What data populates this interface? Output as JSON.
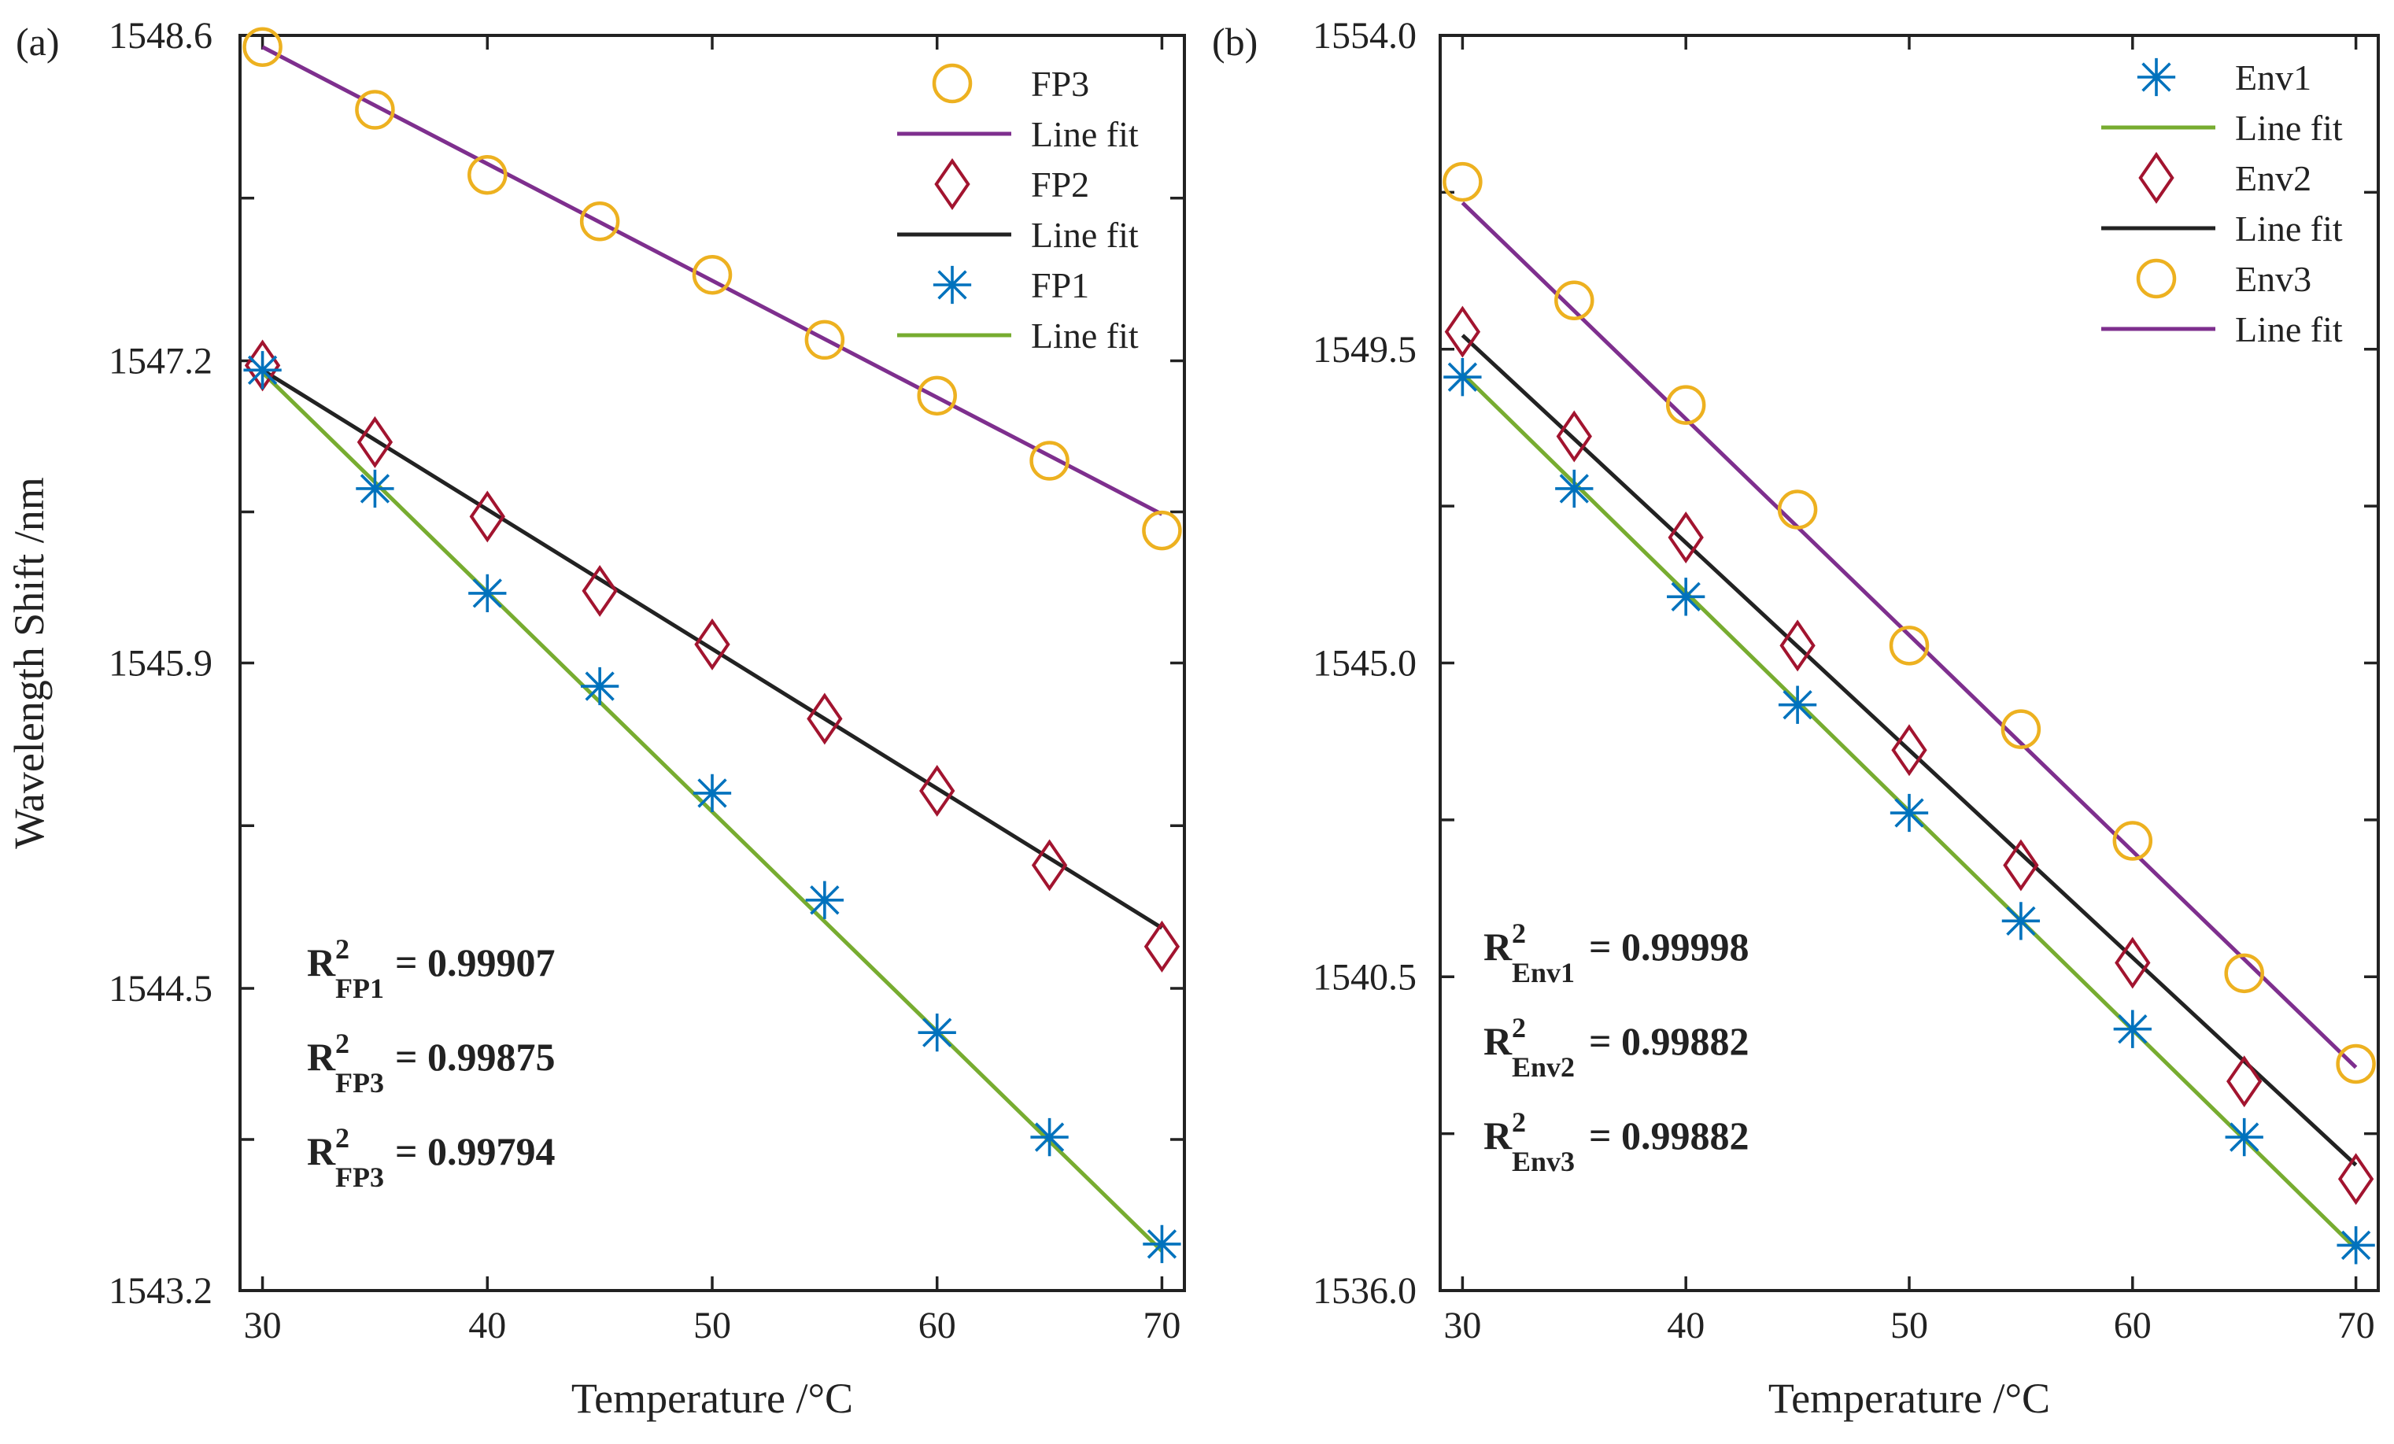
{
  "colors": {
    "orange": "#edb120",
    "purple": "#7e2f8e",
    "darkred": "#a2142f",
    "black": "#222222",
    "green": "#77ac30",
    "blue": "#0072bd",
    "axis": "#222222"
  },
  "chart_data": [
    {
      "panel_label": "(a)",
      "type": "scatter",
      "xlabel": "Temperature /°C",
      "ylabel": "Wavelength Shift /nm",
      "xlim": [
        29,
        71
      ],
      "ylim": [
        1543.2,
        1548.6
      ],
      "xticks": [
        30,
        40,
        50,
        60,
        70
      ],
      "yticks": [
        1543.2,
        1544.5,
        1545.9,
        1547.2,
        1548.6
      ],
      "ytick_labels": [
        "1543.2",
        "1544.5",
        "1545.9",
        "1547.2",
        "1548.6"
      ],
      "x": [
        30,
        35,
        40,
        45,
        50,
        55,
        60,
        65,
        70
      ],
      "series": [
        {
          "name": "FP3",
          "marker": "circle",
          "color": "#edb120",
          "values": [
            1548.55,
            1548.28,
            1548.0,
            1547.8,
            1547.57,
            1547.29,
            1547.05,
            1546.77,
            1546.47
          ],
          "fit": {
            "label": "Line fit",
            "color": "#7e2f8e",
            "start": 1548.55,
            "end": 1546.54
          }
        },
        {
          "name": "FP2",
          "marker": "diamond",
          "color": "#a2142f",
          "values": [
            1547.18,
            1546.85,
            1546.53,
            1546.21,
            1545.98,
            1545.66,
            1545.35,
            1545.03,
            1544.68
          ],
          "fit": {
            "label": "Line fit",
            "color": "#222222",
            "start": 1547.16,
            "end": 1544.76
          }
        },
        {
          "name": "FP1",
          "marker": "asterisk",
          "color": "#0072bd",
          "values": [
            1547.16,
            1546.65,
            1546.2,
            1545.8,
            1545.34,
            1544.88,
            1544.31,
            1543.86,
            1543.4
          ],
          "fit": {
            "label": "Line fit",
            "color": "#77ac30",
            "start": 1547.15,
            "end": 1543.37
          }
        }
      ],
      "legend_order": [
        {
          "label": "FP3",
          "kind": "marker",
          "series": 0
        },
        {
          "label": "Line fit",
          "kind": "line",
          "series": 0
        },
        {
          "label": "FP2",
          "kind": "marker",
          "series": 1
        },
        {
          "label": "Line fit",
          "kind": "line",
          "series": 1
        },
        {
          "label": "FP1",
          "kind": "marker",
          "series": 2
        },
        {
          "label": "Line fit",
          "kind": "line",
          "series": 2
        }
      ],
      "legend_position": "top-right",
      "annotations": [
        {
          "base": "R",
          "sup": "2",
          "sub": "FP1",
          "value": " = 0.99907"
        },
        {
          "base": "R",
          "sup": "2",
          "sub": "FP3",
          "value": " = 0.99875"
        },
        {
          "base": "R",
          "sup": "2",
          "sub": "FP3",
          "value": " = 0.99794"
        }
      ]
    },
    {
      "panel_label": "(b)",
      "type": "scatter",
      "xlabel": "Temperature /°C",
      "ylabel": "",
      "xlim": [
        29,
        71
      ],
      "ylim": [
        1536.0,
        1554.0
      ],
      "xticks": [
        30,
        40,
        50,
        60,
        70
      ],
      "yticks": [
        1536.0,
        1540.5,
        1545.0,
        1549.5,
        1554.0
      ],
      "ytick_labels": [
        "1536.0",
        "1540.5",
        "1545.0",
        "1549.5",
        "1554.0"
      ],
      "x": [
        30,
        35,
        40,
        45,
        50,
        55,
        60,
        65,
        70
      ],
      "series": [
        {
          "name": "Env1",
          "marker": "asterisk",
          "color": "#0072bd",
          "values": [
            1549.1,
            1547.5,
            1545.95,
            1544.4,
            1542.85,
            1541.3,
            1539.75,
            1538.2,
            1536.65
          ],
          "fit": {
            "label": "Line fit",
            "color": "#77ac30",
            "start": 1549.15,
            "end": 1536.6
          }
        },
        {
          "name": "Env2",
          "marker": "diamond",
          "color": "#a2142f",
          "values": [
            1549.75,
            1548.25,
            1546.8,
            1545.25,
            1543.75,
            1542.1,
            1540.7,
            1539.0,
            1537.6
          ],
          "fit": {
            "label": "Line fit",
            "color": "#222222",
            "start": 1549.7,
            "end": 1537.8
          }
        },
        {
          "name": "Env3",
          "marker": "circle",
          "color": "#edb120",
          "values": [
            1551.9,
            1550.2,
            1548.7,
            1547.2,
            1545.25,
            1544.05,
            1542.45,
            1540.55,
            1539.25
          ],
          "fit": {
            "label": "Line fit",
            "color": "#7e2f8e",
            "start": 1551.6,
            "end": 1539.2
          }
        }
      ],
      "legend_order": [
        {
          "label": "Env1",
          "kind": "marker",
          "series": 0
        },
        {
          "label": "Line fit",
          "kind": "line",
          "series": 0
        },
        {
          "label": "Env2",
          "kind": "marker",
          "series": 1
        },
        {
          "label": "Line fit",
          "kind": "line",
          "series": 1
        },
        {
          "label": "Env3",
          "kind": "marker",
          "series": 2
        },
        {
          "label": "Line fit",
          "kind": "line",
          "series": 2
        }
      ],
      "legend_position": "top-right",
      "annotations": [
        {
          "base": "R",
          "sup": "2",
          "sub": "Env1",
          "value": " = 0.99998"
        },
        {
          "base": "R",
          "sup": "2",
          "sub": "Env2",
          "value": " = 0.99882"
        },
        {
          "base": "R",
          "sup": "2",
          "sub": "Env3",
          "value": " = 0.99882"
        }
      ]
    }
  ]
}
